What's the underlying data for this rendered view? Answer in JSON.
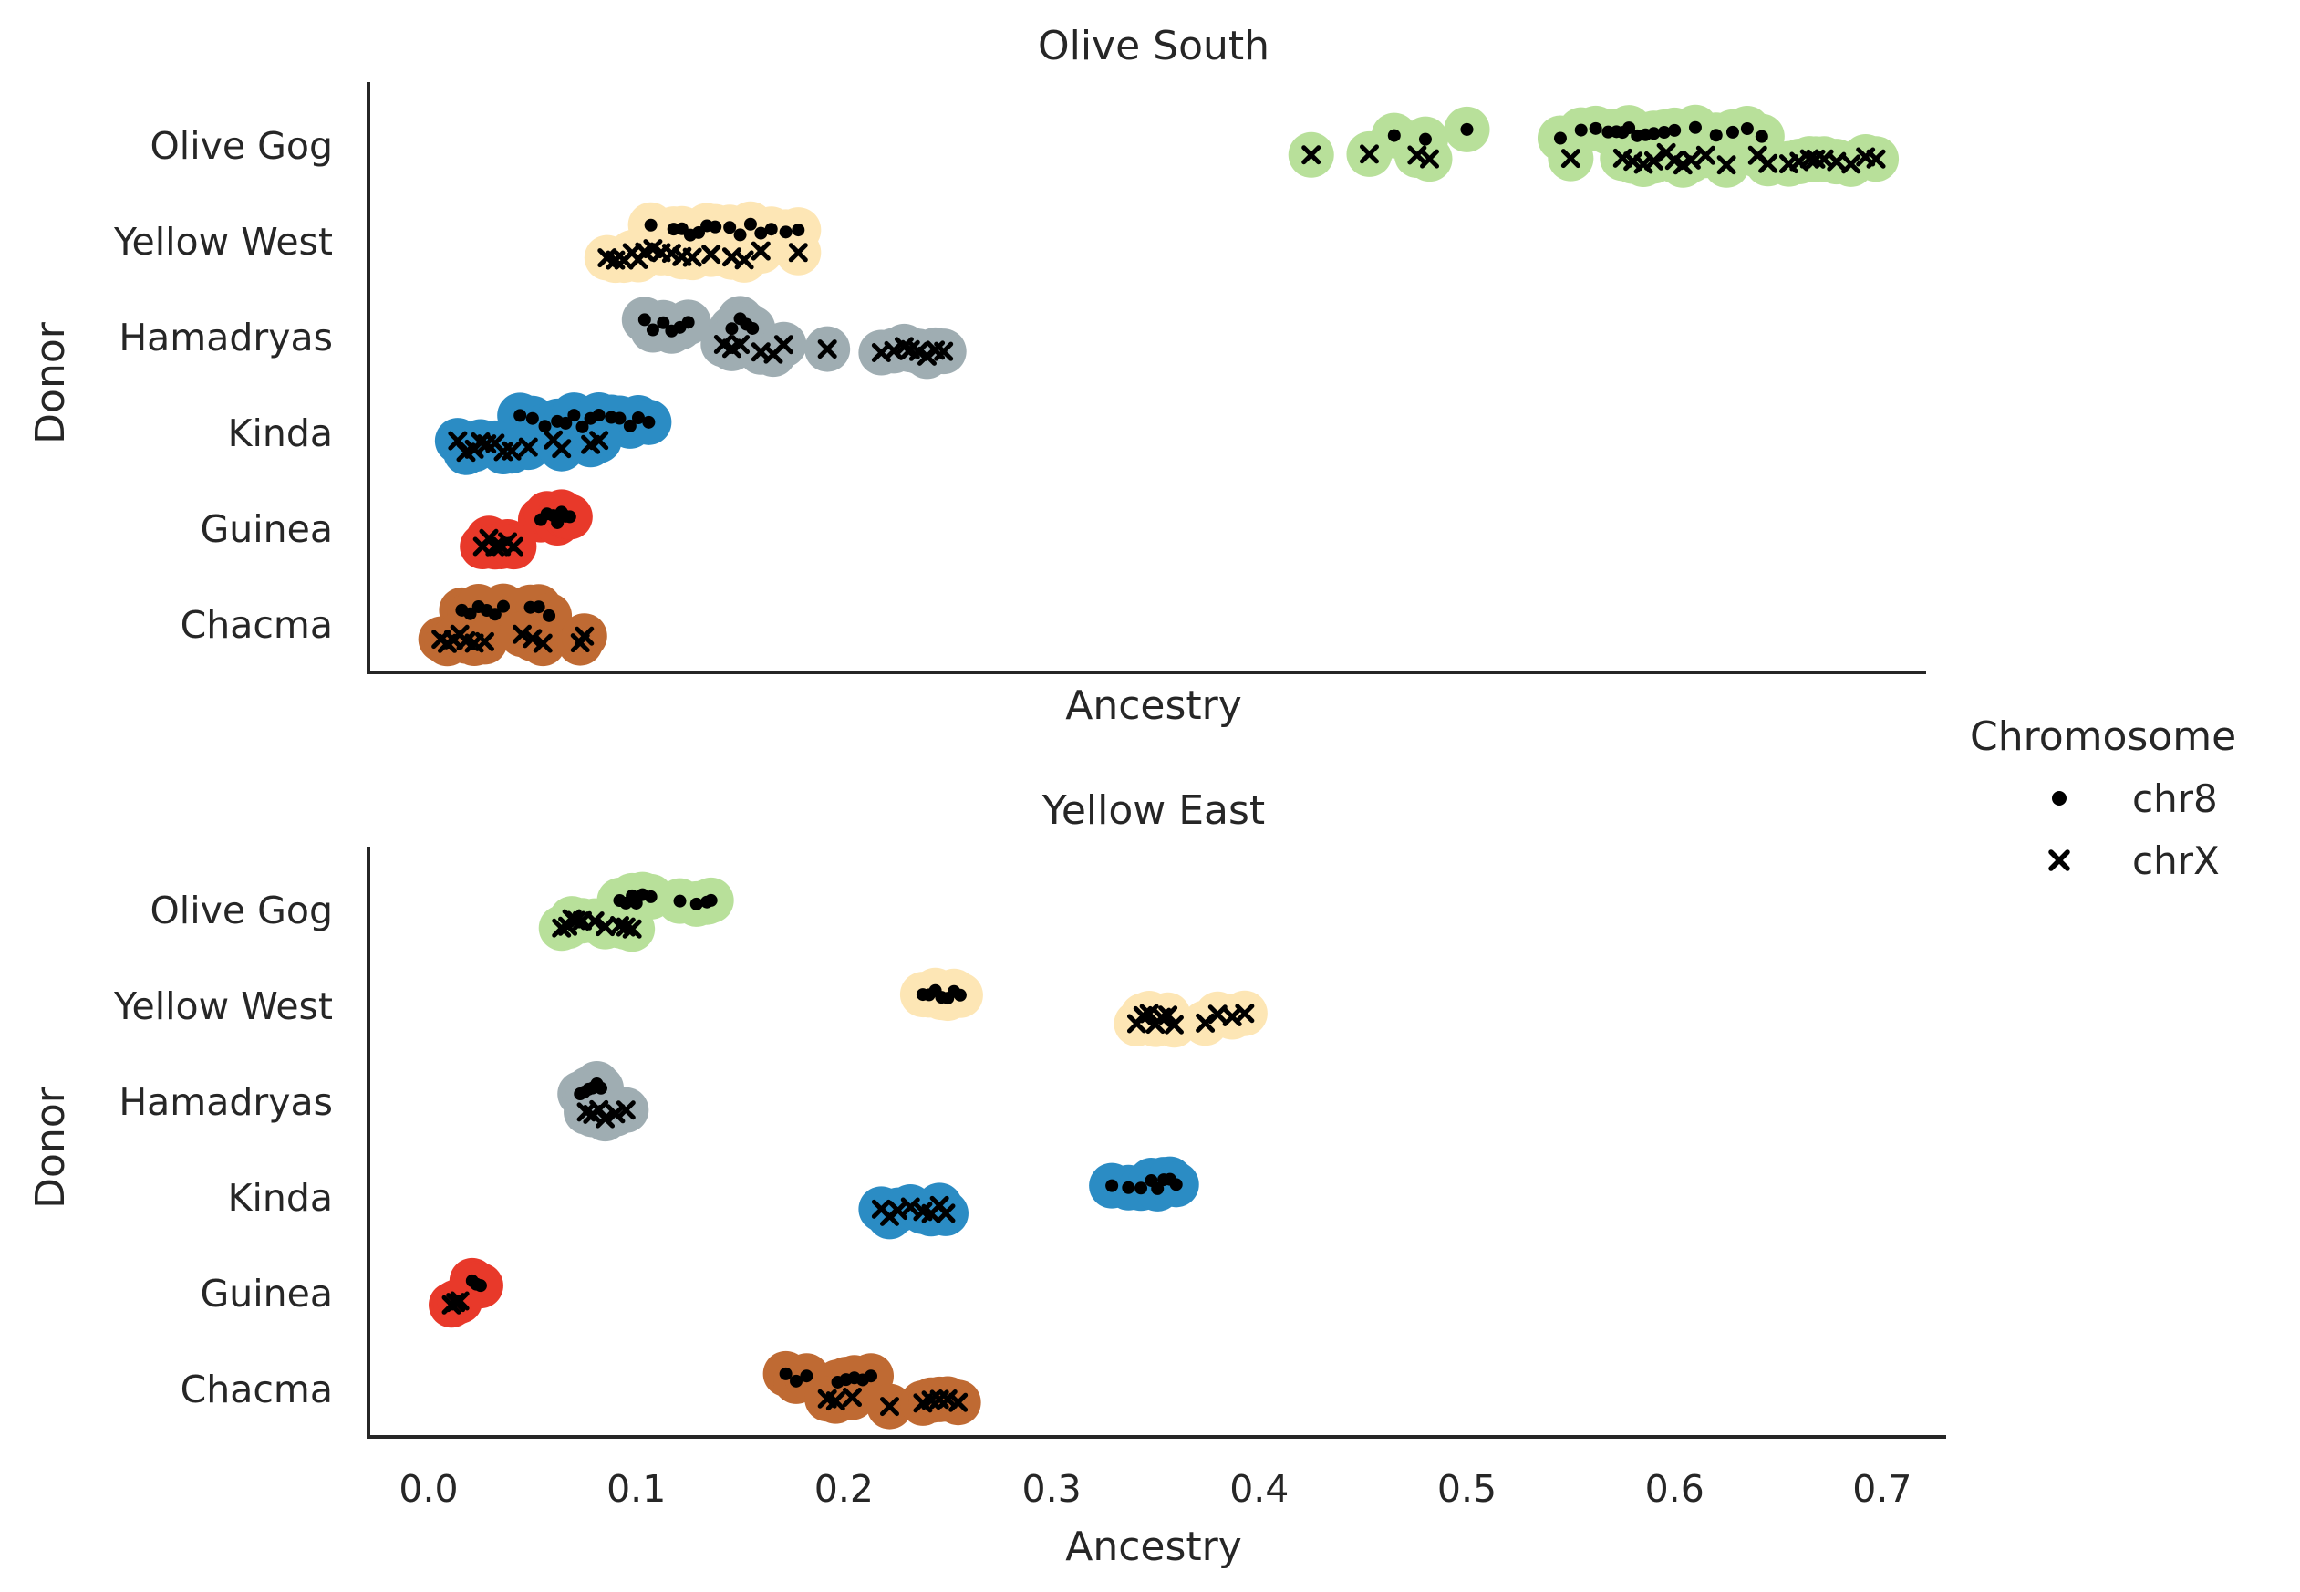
{
  "chart_data": [
    {
      "type": "scatter",
      "title": "Olive South",
      "xlabel": "Ancestry",
      "ylabel": "Donor",
      "xlim": [
        -0.03,
        0.73
      ],
      "xticks": [
        0.0,
        0.1,
        0.2,
        0.3,
        0.4,
        0.5,
        0.6,
        0.7
      ],
      "xtick_labels": [],
      "categories": [
        "Olive Gog",
        "Yellow West",
        "Hamadryas",
        "Kinda",
        "Guinea",
        "Chacma"
      ],
      "series": [
        {
          "category": "Olive Gog",
          "color": "#b8e09a",
          "chr8": [
            0.48,
            0.5,
            0.465,
            0.545,
            0.555,
            0.562,
            0.568,
            0.572,
            0.575,
            0.578,
            0.582,
            0.586,
            0.59,
            0.595,
            0.6,
            0.61,
            0.62,
            0.628,
            0.635,
            0.642
          ],
          "chrX": [
            0.425,
            0.453,
            0.476,
            0.482,
            0.55,
            0.575,
            0.58,
            0.585,
            0.59,
            0.596,
            0.6,
            0.604,
            0.608,
            0.615,
            0.625,
            0.64,
            0.645,
            0.655,
            0.66,
            0.665,
            0.668,
            0.672,
            0.678,
            0.685,
            0.692,
            0.697
          ]
        },
        {
          "category": "Yellow West",
          "color": "#fde6b5",
          "chr8": [
            0.107,
            0.118,
            0.122,
            0.126,
            0.13,
            0.134,
            0.138,
            0.145,
            0.15,
            0.155,
            0.16,
            0.165,
            0.172,
            0.178
          ],
          "chrX": [
            0.086,
            0.09,
            0.094,
            0.098,
            0.101,
            0.104,
            0.108,
            0.112,
            0.117,
            0.122,
            0.127,
            0.136,
            0.146,
            0.152,
            0.16,
            0.178
          ]
        },
        {
          "category": "Hamadryas",
          "color": "#9fadb2",
          "chr8": [
            0.104,
            0.108,
            0.113,
            0.117,
            0.121,
            0.125,
            0.146,
            0.15,
            0.153,
            0.156
          ],
          "chrX": [
            0.142,
            0.146,
            0.15,
            0.16,
            0.166,
            0.171,
            0.192,
            0.218,
            0.224,
            0.229,
            0.232,
            0.236,
            0.24,
            0.244,
            0.248
          ]
        },
        {
          "category": "Kinda",
          "color": "#2b8cc4",
          "chr8": [
            0.044,
            0.05,
            0.056,
            0.062,
            0.066,
            0.07,
            0.074,
            0.078,
            0.082,
            0.088,
            0.092,
            0.097,
            0.101,
            0.106
          ],
          "chrX": [
            0.014,
            0.018,
            0.022,
            0.025,
            0.028,
            0.032,
            0.036,
            0.04,
            0.048,
            0.06,
            0.064,
            0.078,
            0.082
          ]
        },
        {
          "category": "Guinea",
          "color": "#e8392a",
          "chr8": [
            0.054,
            0.057,
            0.06,
            0.062,
            0.064,
            0.066,
            0.068
          ],
          "chrX": [
            0.026,
            0.029,
            0.032,
            0.035,
            0.038,
            0.041
          ]
        },
        {
          "category": "Chacma",
          "color": "#bf6a33",
          "chr8": [
            0.016,
            0.02,
            0.024,
            0.028,
            0.032,
            0.036,
            0.049,
            0.053,
            0.058
          ],
          "chrX": [
            0.006,
            0.009,
            0.012,
            0.015,
            0.018,
            0.022,
            0.027,
            0.045,
            0.05,
            0.055,
            0.073,
            0.075
          ]
        }
      ]
    },
    {
      "type": "scatter",
      "title": "Yellow East",
      "xlabel": "Ancestry",
      "ylabel": "Donor",
      "xlim": [
        -0.03,
        0.73
      ],
      "xticks": [
        0.0,
        0.1,
        0.2,
        0.3,
        0.4,
        0.5,
        0.6,
        0.7
      ],
      "xtick_labels": [
        "0.0",
        "0.1",
        "0.2",
        "0.3",
        "0.4",
        "0.5",
        "0.6",
        "0.7"
      ],
      "categories": [
        "Olive Gog",
        "Yellow West",
        "Hamadryas",
        "Kinda",
        "Guinea",
        "Chacma"
      ],
      "series": [
        {
          "category": "Olive Gog",
          "color": "#b8e09a",
          "chr8": [
            0.092,
            0.095,
            0.098,
            0.1,
            0.103,
            0.107,
            0.121,
            0.129,
            0.134,
            0.136
          ],
          "chrX": [
            0.064,
            0.067,
            0.069,
            0.071,
            0.074,
            0.08,
            0.085,
            0.092,
            0.095,
            0.098
          ]
        },
        {
          "category": "Yellow West",
          "color": "#fde6b5",
          "chr8": [
            0.238,
            0.241,
            0.244,
            0.247,
            0.25,
            0.253,
            0.256
          ],
          "chrX": [
            0.341,
            0.344,
            0.347,
            0.35,
            0.353,
            0.356,
            0.359,
            0.374,
            0.38,
            0.387,
            0.393
          ]
        },
        {
          "category": "Hamadryas",
          "color": "#9fadb2",
          "chr8": [
            0.073,
            0.075,
            0.077,
            0.079,
            0.081,
            0.083
          ],
          "chrX": [
            0.076,
            0.079,
            0.082,
            0.085,
            0.09,
            0.095
          ]
        },
        {
          "category": "Kinda",
          "color": "#2b8cc4",
          "chr8": [
            0.329,
            0.337,
            0.343,
            0.348,
            0.351,
            0.354,
            0.357,
            0.36
          ],
          "chrX": [
            0.218,
            0.222,
            0.226,
            0.232,
            0.238,
            0.242,
            0.246,
            0.249
          ]
        },
        {
          "category": "Guinea",
          "color": "#e8392a",
          "chr8": [
            0.021,
            0.023,
            0.025
          ],
          "chrX": [
            0.011,
            0.013,
            0.015
          ]
        },
        {
          "category": "Chacma",
          "color": "#bf6a33",
          "chr8": [
            0.172,
            0.177,
            0.182,
            0.197,
            0.201,
            0.205,
            0.209,
            0.213
          ],
          "chrX": [
            0.192,
            0.196,
            0.204,
            0.222,
            0.238,
            0.242,
            0.246,
            0.25,
            0.255
          ]
        }
      ]
    }
  ],
  "legend": {
    "title": "Chromosome",
    "items": [
      {
        "label": "chr8",
        "marker": "dot"
      },
      {
        "label": "chrX",
        "marker": "cross"
      }
    ]
  }
}
